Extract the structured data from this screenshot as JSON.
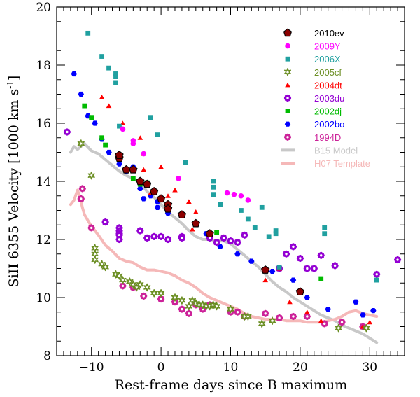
{
  "chart_data": {
    "type": "scatter",
    "title": "",
    "xlabel": "Rest-frame days since B maximum",
    "ylabel_prefix": "SiII 6355 Velocity [1000 km s",
    "ylabel_sup": "-1",
    "ylabel_suffix": "]",
    "xlim": [
      -15,
      35
    ],
    "ylim": [
      8,
      20
    ],
    "x_ticks": [
      -10,
      0,
      10,
      20,
      30
    ],
    "y_ticks": [
      8,
      10,
      12,
      14,
      16,
      18,
      20
    ],
    "grid": false,
    "legend_position": "top-right",
    "series": [
      {
        "name": "2010ev",
        "color": "#8b0000",
        "marker": "pentagon",
        "points": [
          [
            -6,
            14.8
          ],
          [
            -6,
            14.9
          ],
          [
            -5,
            14.4
          ],
          [
            -4,
            14.4
          ],
          [
            -3,
            14.0
          ],
          [
            -2,
            13.9
          ],
          [
            -1,
            13.65
          ],
          [
            0,
            13.4
          ],
          [
            1,
            13.2
          ],
          [
            1,
            13.05
          ],
          [
            3,
            12.85
          ],
          [
            5,
            12.55
          ],
          [
            7,
            12.2
          ],
          [
            15,
            10.95
          ],
          [
            20,
            10.2
          ]
        ]
      },
      {
        "name": "2009Y",
        "color": "#ff00ff",
        "marker": "circle",
        "points": [
          [
            -5.5,
            15.8
          ],
          [
            -4,
            15.4
          ],
          [
            -4,
            15.3
          ],
          [
            -2.5,
            14.95
          ],
          [
            2.5,
            14.1
          ],
          [
            9.5,
            13.6
          ],
          [
            10.5,
            13.55
          ],
          [
            11.5,
            13.5
          ],
          [
            12.5,
            13.35
          ]
        ]
      },
      {
        "name": "2006X",
        "color": "#20a0a0",
        "marker": "square",
        "points": [
          [
            -10.5,
            19.1
          ],
          [
            -8.5,
            18.3
          ],
          [
            -7.5,
            17.9
          ],
          [
            -6.5,
            17.7
          ],
          [
            -6.5,
            17.6
          ],
          [
            -6.5,
            17.4
          ],
          [
            -6,
            15.9
          ],
          [
            -1.5,
            16.2
          ],
          [
            -0.5,
            15.6
          ],
          [
            3.5,
            14.65
          ],
          [
            7.5,
            14.0
          ],
          [
            7.5,
            13.8
          ],
          [
            7.5,
            13.55
          ],
          [
            8.5,
            13.2
          ],
          [
            11.5,
            13.0
          ],
          [
            12.5,
            12.7
          ],
          [
            13.5,
            12.4
          ],
          [
            14.5,
            13.1
          ],
          [
            15.5,
            12.1
          ],
          [
            16.5,
            12.2
          ],
          [
            16.5,
            12.3
          ],
          [
            17,
            11.05
          ],
          [
            23.5,
            12.4
          ],
          [
            23.5,
            12.2
          ],
          [
            31,
            10.6
          ]
        ]
      },
      {
        "name": "2005cf",
        "color": "#6b8e23",
        "marker": "star",
        "points": [
          [
            -11.5,
            15.3
          ],
          [
            -10,
            14.2
          ],
          [
            -9.5,
            11.7
          ],
          [
            -9.5,
            11.5
          ],
          [
            -9.5,
            11.3
          ],
          [
            -8.5,
            11.15
          ],
          [
            -8,
            11.05
          ],
          [
            -6.5,
            10.8
          ],
          [
            -6,
            10.75
          ],
          [
            -5.5,
            10.6
          ],
          [
            -4.5,
            10.55
          ],
          [
            -4,
            10.45
          ],
          [
            -3.5,
            10.35
          ],
          [
            -3,
            10.45
          ],
          [
            -2,
            10.35
          ],
          [
            -1,
            10.15
          ],
          [
            0,
            10.15
          ],
          [
            2,
            10.0
          ],
          [
            3,
            9.9
          ],
          [
            4,
            9.7
          ],
          [
            4.5,
            9.9
          ],
          [
            5,
            9.8
          ],
          [
            5.5,
            9.75
          ],
          [
            6,
            9.75
          ],
          [
            6.5,
            9.7
          ],
          [
            7,
            9.7
          ],
          [
            7.5,
            9.75
          ],
          [
            8,
            9.7
          ],
          [
            10,
            9.6
          ],
          [
            12,
            9.35
          ],
          [
            12.5,
            9.35
          ],
          [
            14.5,
            9.1
          ],
          [
            16,
            9.2
          ],
          [
            25.5,
            8.95
          ],
          [
            29.5,
            8.95
          ]
        ]
      },
      {
        "name": "2004dt",
        "color": "#ff0000",
        "marker": "triangle",
        "points": [
          [
            -8.5,
            16.9
          ],
          [
            -7.5,
            16.6
          ],
          [
            -6,
            14.8
          ],
          [
            -5.5,
            16.0
          ],
          [
            -3,
            15.5
          ],
          [
            -2.5,
            14.95
          ],
          [
            -2.5,
            14.4
          ],
          [
            -1.5,
            13.6
          ],
          [
            0,
            14.5
          ],
          [
            1,
            13.5
          ],
          [
            2,
            13.7
          ],
          [
            4,
            13.3
          ],
          [
            4.5,
            12.35
          ],
          [
            5,
            12.95
          ],
          [
            15,
            10.6
          ],
          [
            17,
            11.0
          ],
          [
            18.5,
            9.85
          ],
          [
            21,
            9.5
          ],
          [
            23,
            9.2
          ],
          [
            29,
            9.0
          ],
          [
            30,
            9.15
          ]
        ]
      },
      {
        "name": "2003du",
        "color": "#9400d3",
        "marker": "flower",
        "points": [
          [
            -13.5,
            15.7
          ],
          [
            -8,
            12.6
          ],
          [
            -6,
            12.4
          ],
          [
            -6,
            12.3
          ],
          [
            -6,
            12.2
          ],
          [
            -6,
            12.15
          ],
          [
            -6,
            12.0
          ],
          [
            -3,
            12.3
          ],
          [
            -2,
            12.05
          ],
          [
            -1,
            12.1
          ],
          [
            0,
            12.1
          ],
          [
            1,
            12.0
          ],
          [
            3,
            12.1
          ],
          [
            3,
            12.05
          ],
          [
            7,
            12.1
          ],
          [
            7,
            12.05
          ],
          [
            8,
            11.9
          ],
          [
            9,
            12.05
          ],
          [
            10,
            11.95
          ],
          [
            11,
            11.9
          ],
          [
            12,
            12.15
          ],
          [
            17,
            11.0
          ],
          [
            18,
            11.5
          ],
          [
            19,
            11.75
          ],
          [
            20,
            11.35
          ],
          [
            21,
            11.0
          ],
          [
            22,
            11.0
          ],
          [
            23,
            11.45
          ],
          [
            25,
            11.1
          ],
          [
            31,
            10.8
          ],
          [
            34,
            11.3
          ]
        ]
      },
      {
        "name": "2002dj",
        "color": "#00bb00",
        "marker": "square",
        "points": [
          [
            -11,
            16.6
          ],
          [
            -10,
            16.2
          ],
          [
            -8.5,
            15.5
          ],
          [
            -8,
            15.25
          ],
          [
            -4,
            14.1
          ],
          [
            -3,
            13.9
          ],
          [
            -2,
            13.95
          ],
          [
            8,
            12.25
          ],
          [
            23,
            10.65
          ],
          [
            31,
            10.6
          ]
        ]
      },
      {
        "name": "2002bo",
        "color": "#0000ff",
        "marker": "hexagon",
        "points": [
          [
            -12.5,
            17.7
          ],
          [
            -11.5,
            17.0
          ],
          [
            -10.5,
            16.25
          ],
          [
            -9.5,
            16.0
          ],
          [
            -8.5,
            15.45
          ],
          [
            -7.5,
            15.0
          ],
          [
            -6,
            14.6
          ],
          [
            -5,
            14.35
          ],
          [
            -4,
            14.5
          ],
          [
            -3,
            13.75
          ],
          [
            -2.5,
            13.4
          ],
          [
            -1.5,
            13.5
          ],
          [
            -0.5,
            13.3
          ],
          [
            -0.5,
            13.1
          ],
          [
            1,
            13.15
          ],
          [
            1,
            12.9
          ],
          [
            6.5,
            12.2
          ],
          [
            8.5,
            11.75
          ],
          [
            11,
            11.5
          ],
          [
            13,
            11.25
          ],
          [
            15,
            10.95
          ],
          [
            16,
            10.9
          ],
          [
            19,
            10.6
          ],
          [
            21,
            10.0
          ],
          [
            24,
            9.6
          ],
          [
            28,
            9.85
          ],
          [
            29,
            9.4
          ],
          [
            30.5,
            9.55
          ]
        ]
      },
      {
        "name": "1994D",
        "color": "#cc2299",
        "marker": "flower",
        "points": [
          [
            -11.5,
            13.4
          ],
          [
            -11.3,
            13.75
          ],
          [
            -10,
            12.4
          ],
          [
            -5.5,
            10.4
          ],
          [
            -4,
            10.35
          ],
          [
            -2.5,
            10.05
          ],
          [
            0,
            9.95
          ],
          [
            2,
            9.85
          ],
          [
            3,
            9.6
          ],
          [
            4,
            9.45
          ],
          [
            5,
            9.75
          ],
          [
            6,
            9.6
          ],
          [
            7,
            9.75
          ],
          [
            10,
            9.5
          ],
          [
            11,
            9.5
          ],
          [
            12,
            9.35
          ],
          [
            15,
            9.45
          ],
          [
            17,
            9.3
          ],
          [
            19,
            9.35
          ],
          [
            21,
            9.35
          ],
          [
            23.5,
            9.1
          ],
          [
            26,
            9.15
          ],
          [
            29,
            9.0
          ]
        ]
      }
    ],
    "models": [
      {
        "name": "B15 Model",
        "color": "#c8c8c8",
        "points": [
          [
            -13,
            15.0
          ],
          [
            -12.5,
            15.2
          ],
          [
            -12,
            15.1
          ],
          [
            -11,
            15.3
          ],
          [
            -10,
            15.05
          ],
          [
            -9,
            14.95
          ],
          [
            -8,
            14.75
          ],
          [
            -7,
            14.55
          ],
          [
            -6,
            14.35
          ],
          [
            -5,
            14.2
          ],
          [
            -4,
            14.1
          ],
          [
            -3,
            13.95
          ],
          [
            -2,
            13.65
          ],
          [
            -1,
            13.45
          ],
          [
            0,
            13.2
          ],
          [
            1,
            12.95
          ],
          [
            2,
            12.75
          ],
          [
            3,
            12.55
          ],
          [
            4,
            12.3
          ],
          [
            5,
            12.1
          ],
          [
            6,
            12.0
          ],
          [
            7,
            12.0
          ],
          [
            8,
            11.95
          ],
          [
            9,
            11.95
          ],
          [
            10,
            11.85
          ],
          [
            11,
            11.65
          ],
          [
            12,
            11.45
          ],
          [
            13,
            11.25
          ],
          [
            14,
            11.05
          ],
          [
            15,
            10.8
          ],
          [
            16,
            10.55
          ],
          [
            17,
            10.35
          ],
          [
            18,
            10.2
          ],
          [
            19,
            10.0
          ],
          [
            20,
            9.85
          ],
          [
            21,
            9.7
          ],
          [
            22,
            9.55
          ],
          [
            23,
            9.4
          ],
          [
            24,
            9.3
          ],
          [
            25,
            9.2
          ],
          [
            26,
            9.05
          ],
          [
            27,
            8.95
          ],
          [
            28,
            8.85
          ],
          [
            29,
            8.75
          ],
          [
            30,
            8.6
          ],
          [
            31,
            8.45
          ]
        ]
      },
      {
        "name": "H07 Template",
        "color": "#f5b8b8",
        "points": [
          [
            -13,
            13.2
          ],
          [
            -12.5,
            13.35
          ],
          [
            -12,
            13.7
          ],
          [
            -11.7,
            13.5
          ],
          [
            -11.3,
            13.1
          ],
          [
            -11,
            12.85
          ],
          [
            -10,
            12.45
          ],
          [
            -9,
            12.15
          ],
          [
            -8,
            11.8
          ],
          [
            -7,
            11.6
          ],
          [
            -6,
            11.35
          ],
          [
            -5,
            11.25
          ],
          [
            -4,
            11.2
          ],
          [
            -3,
            11.05
          ],
          [
            -2,
            10.95
          ],
          [
            -1,
            10.95
          ],
          [
            0,
            10.9
          ],
          [
            1,
            10.85
          ],
          [
            2,
            10.75
          ],
          [
            3,
            10.6
          ],
          [
            4,
            10.5
          ],
          [
            5,
            10.35
          ],
          [
            6,
            10.15
          ],
          [
            7,
            10.0
          ],
          [
            8,
            9.9
          ],
          [
            9,
            9.8
          ],
          [
            10,
            9.7
          ],
          [
            11,
            9.6
          ],
          [
            12,
            9.45
          ],
          [
            13,
            9.35
          ],
          [
            14,
            9.3
          ],
          [
            15,
            9.25
          ],
          [
            16,
            9.25
          ],
          [
            17,
            9.25
          ],
          [
            18,
            9.2
          ],
          [
            19,
            9.2
          ],
          [
            20,
            9.2
          ],
          [
            21,
            9.15
          ],
          [
            22,
            9.15
          ],
          [
            23,
            9.15
          ],
          [
            24,
            9.2
          ],
          [
            25,
            9.25
          ],
          [
            26,
            9.35
          ],
          [
            27,
            9.5
          ],
          [
            28,
            9.55
          ],
          [
            29,
            9.45
          ],
          [
            30,
            9.4
          ],
          [
            31,
            9.35
          ]
        ]
      }
    ]
  }
}
